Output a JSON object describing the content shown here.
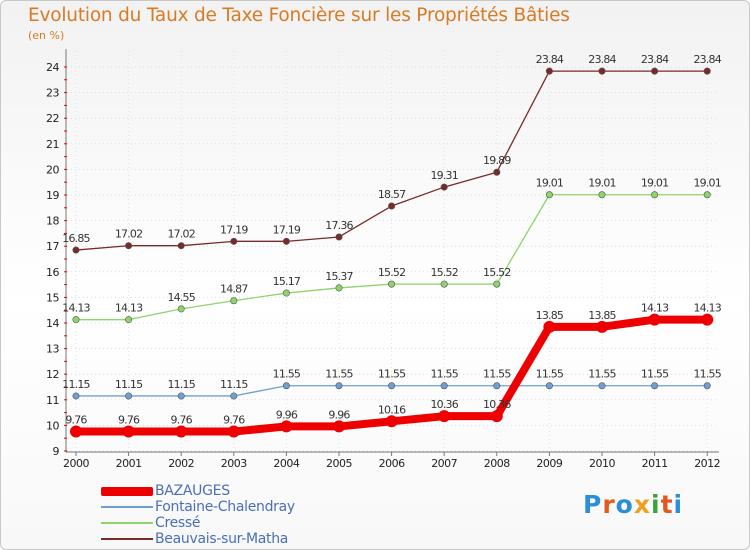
{
  "title": "Evolution du Taux de Taxe Foncière sur les Propriétés Bâties",
  "subtitle": "(en %)",
  "logo": {
    "text": "Proxiti",
    "colors": [
      "#2a8fd8",
      "#e3581f",
      "#2a8fd8",
      "#f0a020",
      "#3aa53a",
      "#e3581f",
      "#2a8fd8"
    ]
  },
  "chart_data": {
    "type": "line",
    "title": "Evolution du Taux de Taxe Foncière sur les Propriétés Bâties",
    "ylabel": "(en %)",
    "xlabel": "",
    "ylim": [
      9,
      24
    ],
    "yticks": [
      9,
      10,
      11,
      12,
      13,
      14,
      15,
      16,
      17,
      18,
      19,
      20,
      21,
      22,
      23,
      24
    ],
    "x": [
      "2000",
      "2001",
      "2002",
      "2003",
      "2004",
      "2005",
      "2006",
      "2007",
      "2008",
      "2009",
      "2010",
      "2011",
      "2012"
    ],
    "legend_position": "bottom-left",
    "series": [
      {
        "name": "Beauvais-sur-Matha",
        "color": "#7a2a2a",
        "values": [
          16.85,
          17.02,
          17.02,
          17.19,
          17.19,
          17.36,
          18.57,
          19.31,
          19.89,
          23.84,
          23.84,
          23.84,
          23.84
        ],
        "labels": [
          "16.85",
          "17.02",
          "17.02",
          "17.19",
          "17.19",
          "17.36",
          "18.57",
          "19.31",
          "19.89",
          "23.84",
          "23.84",
          "23.84",
          "23.84"
        ]
      },
      {
        "name": "Cressé",
        "color": "#8ed46a",
        "values": [
          14.13,
          14.13,
          14.55,
          14.87,
          15.17,
          15.37,
          15.52,
          15.52,
          15.52,
          19.01,
          19.01,
          19.01,
          19.01
        ],
        "labels": [
          "14.13",
          "14.13",
          "14.55",
          "14.87",
          "15.17",
          "15.37",
          "15.52",
          "15.52",
          "15.52",
          "19.01",
          "19.01",
          "19.01",
          "19.01"
        ]
      },
      {
        "name": "Fontaine-Chalendray",
        "color": "#6f9fd0",
        "values": [
          11.15,
          11.15,
          11.15,
          11.15,
          11.55,
          11.55,
          11.55,
          11.55,
          11.55,
          11.55,
          11.55,
          11.55,
          11.55
        ],
        "labels": [
          "11.15",
          "11.15",
          "11.15",
          "11.15",
          "11.55",
          "11.55",
          "11.55",
          "11.55",
          "11.55",
          "11.55",
          "11.55",
          "11.55",
          "11.55"
        ]
      },
      {
        "name": "BAZAUGES",
        "color": "#ee0000",
        "values": [
          9.76,
          9.76,
          9.76,
          9.76,
          9.96,
          9.96,
          10.16,
          10.36,
          10.36,
          13.85,
          13.85,
          14.13,
          14.13
        ],
        "labels": [
          "9.76",
          "9.76",
          "9.76",
          "9.76",
          "9.96",
          "9.96",
          "10.16",
          "10.36",
          "10.36",
          "13.85",
          "13.85",
          "14.13",
          "14.13"
        ]
      }
    ],
    "legend": [
      {
        "name": "BAZAUGES",
        "color": "#ee0000"
      },
      {
        "name": "Fontaine-Chalendray",
        "color": "#6f9fd0"
      },
      {
        "name": "Cressé",
        "color": "#8ed46a"
      },
      {
        "name": "Beauvais-sur-Matha",
        "color": "#7a2a2a"
      }
    ]
  }
}
